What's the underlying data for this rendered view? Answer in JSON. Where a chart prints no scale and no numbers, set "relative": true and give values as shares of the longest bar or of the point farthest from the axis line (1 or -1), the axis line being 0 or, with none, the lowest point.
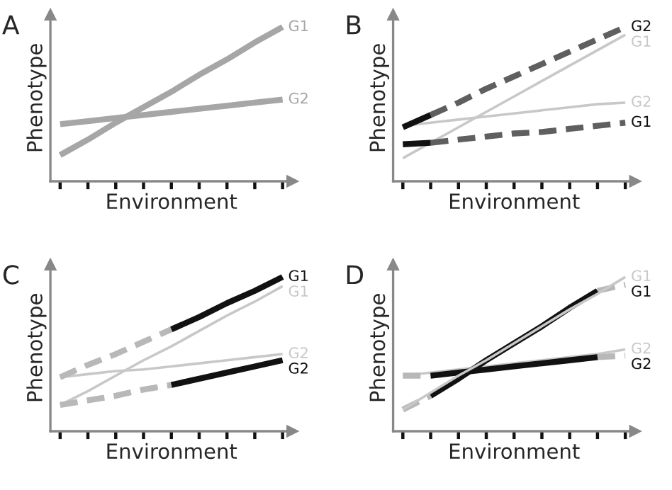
{
  "chart_data": [
    {
      "type": "line",
      "title": "A",
      "xlabel": "Environment",
      "ylabel": "Phenotype",
      "relative": true,
      "tick_labels": false,
      "legend": false,
      "grid": false,
      "categories": [
        null,
        null,
        null,
        null,
        null,
        null,
        null,
        null,
        null
      ],
      "series": [
        {
          "name": "G1",
          "color": "#a6a6a6",
          "values": [
            0.17,
            0.27,
            0.38,
            0.48,
            0.58,
            0.69,
            0.79,
            0.9,
            1.0
          ]
        },
        {
          "name": "G2",
          "color": "#a6a6a6",
          "values": [
            0.37,
            0.39,
            0.41,
            0.43,
            0.45,
            0.47,
            0.49,
            0.51,
            0.53
          ]
        }
      ]
    },
    {
      "type": "line",
      "title": "B",
      "xlabel": "Environment",
      "ylabel": "Phenotype",
      "relative": true,
      "tick_labels": false,
      "legend": false,
      "grid": false,
      "categories": [
        null,
        null,
        null,
        null,
        null,
        null,
        null,
        null,
        null
      ],
      "series": [
        {
          "name": "G1",
          "color": "#c8c8c8",
          "values": [
            0.15,
            0.25,
            0.35,
            0.45,
            0.55,
            0.65,
            0.75,
            0.85,
            0.95
          ]
        },
        {
          "name": "G2",
          "color": "#c8c8c8",
          "values": [
            0.36,
            0.38,
            0.4,
            0.42,
            0.44,
            0.46,
            0.48,
            0.5,
            0.51
          ]
        },
        {
          "name": "G2",
          "color": "#5f5f5f",
          "line_style": "dashed",
          "values": [
            null,
            0.43,
            0.51,
            0.6,
            0.68,
            0.76,
            0.84,
            0.92,
            1.0
          ]
        },
        {
          "name": "G1",
          "color": "#5f5f5f",
          "line_style": "dashed",
          "values": [
            null,
            0.25,
            0.27,
            0.29,
            0.31,
            0.32,
            0.34,
            0.36,
            0.38
          ]
        },
        {
          "color": "#111111",
          "values": [
            0.35,
            0.43,
            null,
            null,
            null,
            null,
            null,
            null,
            null
          ]
        },
        {
          "color": "#111111",
          "values": [
            0.24,
            0.25,
            null,
            null,
            null,
            null,
            null,
            null,
            null
          ]
        }
      ]
    },
    {
      "type": "line",
      "title": "C",
      "xlabel": "Environment",
      "ylabel": "Phenotype",
      "relative": true,
      "tick_labels": false,
      "legend": false,
      "grid": false,
      "categories": [
        null,
        null,
        null,
        null,
        null,
        null,
        null,
        null,
        null
      ],
      "series": [
        {
          "name": "G1",
          "color": "#c8c8c8",
          "values": [
            0.17,
            0.26,
            0.36,
            0.46,
            0.55,
            0.65,
            0.75,
            0.84,
            0.94
          ]
        },
        {
          "name": "G2",
          "color": "#c8c8c8",
          "values": [
            0.35,
            0.37,
            0.39,
            0.4,
            0.42,
            0.44,
            0.46,
            0.48,
            0.5
          ]
        },
        {
          "color": "#b8b8b8",
          "line_style": "dashed",
          "values": [
            0.35,
            0.43,
            0.5,
            0.58,
            0.66,
            null,
            null,
            null,
            null
          ]
        },
        {
          "color": "#b8b8b8",
          "line_style": "dashed",
          "values": [
            0.17,
            0.2,
            0.23,
            0.27,
            0.3,
            null,
            null,
            null,
            null
          ]
        },
        {
          "name": "G1",
          "color": "#111111",
          "values": [
            null,
            null,
            null,
            null,
            0.66,
            0.74,
            0.83,
            0.91,
            1.0
          ]
        },
        {
          "name": "G2",
          "color": "#111111",
          "values": [
            null,
            null,
            null,
            null,
            0.3,
            0.34,
            0.38,
            0.42,
            0.46
          ]
        }
      ]
    },
    {
      "type": "line",
      "title": "D",
      "xlabel": "Environment",
      "ylabel": "Phenotype",
      "relative": true,
      "tick_labels": false,
      "legend": false,
      "grid": false,
      "categories": [
        null,
        null,
        null,
        null,
        null,
        null,
        null,
        null,
        null
      ],
      "series": [
        {
          "name": "G2",
          "color": "#c8c8c8",
          "values": [
            0.36,
            0.38,
            0.4,
            0.42,
            0.44,
            0.46,
            0.48,
            0.5,
            0.53
          ]
        },
        {
          "color": "#b8b8b8",
          "line_style": "dashed",
          "values": [
            0.14,
            0.23,
            null,
            null,
            null,
            null,
            null,
            0.91,
            0.95
          ]
        },
        {
          "color": "#b8b8b8",
          "line_style": "dashed",
          "values": [
            0.36,
            0.36,
            null,
            null,
            null,
            null,
            null,
            0.48,
            0.49
          ]
        },
        {
          "name": "G1",
          "color": "#111111",
          "values": [
            null,
            0.23,
            0.34,
            0.46,
            0.57,
            0.68,
            0.8,
            0.91,
            null
          ]
        },
        {
          "name": "G2",
          "color": "#111111",
          "values": [
            null,
            0.36,
            0.38,
            0.4,
            0.42,
            0.44,
            0.46,
            0.48,
            null
          ]
        },
        {
          "name": "G1",
          "color": "#c8c8c8",
          "values": [
            0.14,
            0.25,
            0.36,
            0.46,
            0.57,
            0.68,
            0.79,
            0.89,
            1.0
          ]
        }
      ]
    }
  ]
}
